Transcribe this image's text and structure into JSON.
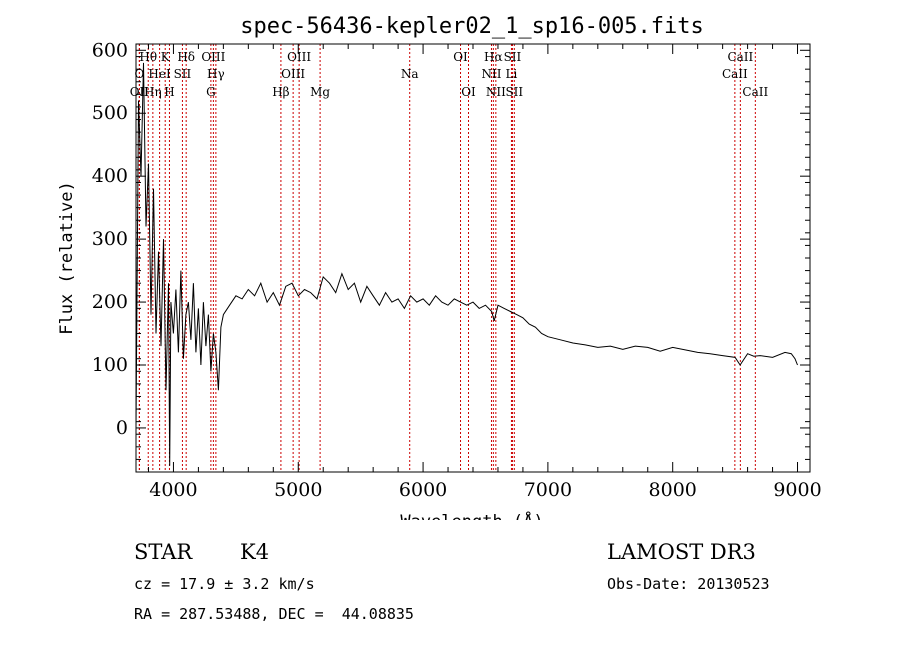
{
  "chart_data": {
    "type": "line",
    "title": "spec-56436-kepler02_1_sp16-005.fits",
    "xlabel": "Wavelength (Å)",
    "ylabel": "Flux (relative)",
    "xlim": [
      3700,
      9100
    ],
    "ylim": [
      -70,
      610
    ],
    "xticks": [
      4000,
      5000,
      6000,
      7000,
      8000,
      9000
    ],
    "yticks": [
      0,
      100,
      200,
      300,
      400,
      500,
      600
    ],
    "series": [
      {
        "name": "flux",
        "x": [
          3700,
          3720,
          3740,
          3760,
          3780,
          3800,
          3820,
          3840,
          3860,
          3880,
          3900,
          3920,
          3940,
          3960,
          3970,
          3980,
          4000,
          4020,
          4040,
          4060,
          4080,
          4100,
          4120,
          4140,
          4160,
          4180,
          4200,
          4220,
          4240,
          4260,
          4280,
          4300,
          4320,
          4340,
          4360,
          4380,
          4400,
          4450,
          4500,
          4550,
          4600,
          4650,
          4700,
          4750,
          4800,
          4850,
          4900,
          4950,
          5000,
          5050,
          5100,
          5150,
          5200,
          5250,
          5300,
          5350,
          5400,
          5450,
          5500,
          5550,
          5600,
          5650,
          5700,
          5750,
          5800,
          5850,
          5900,
          5950,
          6000,
          6050,
          6100,
          6150,
          6200,
          6250,
          6300,
          6350,
          6400,
          6450,
          6500,
          6550,
          6570,
          6600,
          6650,
          6700,
          6750,
          6800,
          6850,
          6900,
          6950,
          7000,
          7100,
          7200,
          7300,
          7400,
          7500,
          7600,
          7700,
          7800,
          7900,
          8000,
          8100,
          8200,
          8300,
          8400,
          8500,
          8540,
          8600,
          8650,
          8700,
          8800,
          8900,
          8950,
          8980,
          9000
        ],
        "y": [
          0,
          520,
          400,
          580,
          320,
          420,
          180,
          380,
          150,
          280,
          130,
          300,
          60,
          230,
          -60,
          200,
          150,
          220,
          120,
          250,
          110,
          180,
          200,
          140,
          230,
          120,
          190,
          100,
          200,
          130,
          180,
          90,
          150,
          120,
          60,
          160,
          180,
          195,
          210,
          205,
          220,
          210,
          230,
          200,
          215,
          195,
          225,
          230,
          210,
          220,
          215,
          205,
          240,
          230,
          215,
          245,
          220,
          230,
          200,
          225,
          210,
          195,
          215,
          200,
          205,
          190,
          210,
          200,
          205,
          195,
          210,
          200,
          195,
          205,
          200,
          195,
          200,
          190,
          195,
          185,
          170,
          195,
          190,
          185,
          180,
          175,
          165,
          160,
          150,
          145,
          140,
          135,
          132,
          128,
          130,
          125,
          130,
          128,
          122,
          128,
          124,
          120,
          118,
          115,
          112,
          100,
          118,
          114,
          115,
          112,
          120,
          118,
          110,
          100
        ]
      }
    ],
    "line_markers": [
      {
        "label": "O",
        "wavelength": 3727,
        "row": 2
      },
      {
        "label": "OII",
        "wavelength": 3727,
        "row": 3
      },
      {
        "label": "Hθ",
        "wavelength": 3798,
        "row": 1
      },
      {
        "label": "Hη",
        "wavelength": 3835,
        "row": 3
      },
      {
        "label": "HeI",
        "wavelength": 3889,
        "row": 2
      },
      {
        "label": "K",
        "wavelength": 3934,
        "row": 1
      },
      {
        "label": "H",
        "wavelength": 3968,
        "row": 3
      },
      {
        "label": "SII",
        "wavelength": 4072,
        "row": 2
      },
      {
        "label": "Hδ",
        "wavelength": 4102,
        "row": 1
      },
      {
        "label": "G",
        "wavelength": 4300,
        "row": 3
      },
      {
        "label": "OIII",
        "wavelength": 4320,
        "row": 1
      },
      {
        "label": "Hγ",
        "wavelength": 4340,
        "row": 2
      },
      {
        "label": "Hβ",
        "wavelength": 4861,
        "row": 3
      },
      {
        "label": "OIII",
        "wavelength": 4959,
        "row": 2
      },
      {
        "label": "OIII",
        "wavelength": 5007,
        "row": 1
      },
      {
        "label": "Mg",
        "wavelength": 5175,
        "row": 3
      },
      {
        "label": "Na",
        "wavelength": 5893,
        "row": 2
      },
      {
        "label": "OI",
        "wavelength": 6300,
        "row": 1
      },
      {
        "label": "OI",
        "wavelength": 6364,
        "row": 3
      },
      {
        "label": "NII",
        "wavelength": 6548,
        "row": 2
      },
      {
        "label": "Hα",
        "wavelength": 6563,
        "row": 1
      },
      {
        "label": "NII",
        "wavelength": 6583,
        "row": 3
      },
      {
        "label": "Li",
        "wavelength": 6708,
        "row": 2
      },
      {
        "label": "SII",
        "wavelength": 6716,
        "row": 1
      },
      {
        "label": "SII",
        "wavelength": 6731,
        "row": 3
      },
      {
        "label": "CaII",
        "wavelength": 8498,
        "row": 2
      },
      {
        "label": "CaII",
        "wavelength": 8542,
        "row": 1
      },
      {
        "label": "CaII",
        "wavelength": 8662,
        "row": 3
      }
    ]
  },
  "footer": {
    "class_label": "STAR",
    "subclass": "K4",
    "survey": "LAMOST DR3",
    "redshift": "cz = 17.9 ± 3.2 km/s",
    "obs_date": "Obs-Date: 20130523",
    "coords": "RA = 287.53488, DEC =  44.08835"
  },
  "colors": {
    "line_marker": "#cc0000",
    "spectrum": "#000000"
  }
}
